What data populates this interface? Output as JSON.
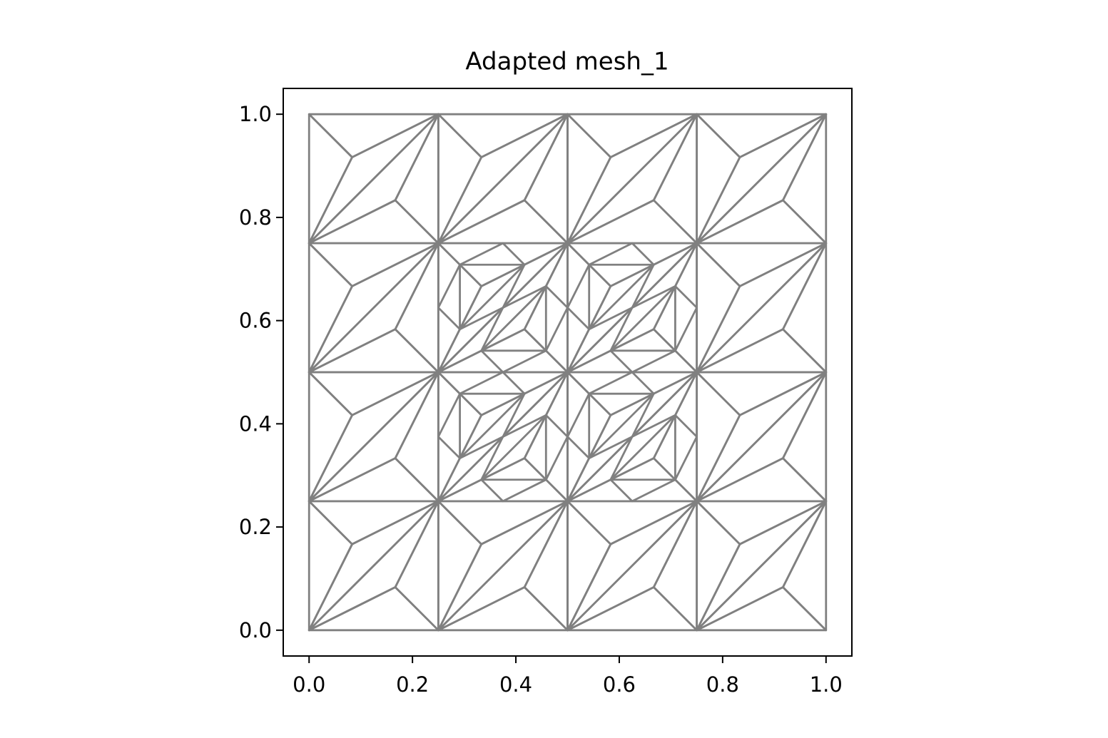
{
  "chart_data": {
    "type": "triplot",
    "title": "Adapted mesh_1",
    "color": "#808080",
    "xlim": [
      -0.05,
      1.05
    ],
    "ylim": [
      -0.05,
      1.05
    ],
    "xticks": [
      {
        "value": 0,
        "label": "0.0"
      },
      0.2,
      0.4,
      0.6,
      0.8,
      {
        "value": 1,
        "label": "1.0"
      }
    ],
    "yticks": [
      {
        "value": 0,
        "label": "0.0"
      },
      0.2,
      0.4,
      0.6,
      0.8,
      {
        "value": 1,
        "label": "1.0"
      }
    ],
    "x": [
      0,
      0.25,
      0.5,
      0.75,
      1,
      0,
      0.25,
      0.5,
      0.75,
      1,
      0,
      0.25,
      0.5,
      0.75,
      1,
      0,
      0.25,
      0.5,
      0.75,
      1,
      0,
      0.25,
      0.5,
      0.75,
      1,
      0.0833,
      0.1667,
      0.3333,
      0.4167,
      0.5833,
      0.6667,
      0.8333,
      0.9167,
      0.0833,
      0.1667,
      0.3333,
      0.4167,
      0.5833,
      0.6667,
      0.8333,
      0.9167,
      0.0833,
      0.1667,
      0.3333,
      0.4167,
      0.5833,
      0.6667,
      0.8333,
      0.9167,
      0.0833,
      0.1667,
      0.3333,
      0.4167,
      0.5833,
      0.6667,
      0.8333,
      0.9167,
      0.25,
      0.375,
      0.375,
      0.375,
      0.5,
      0.2917,
      0.2917,
      0.4167,
      0.3333,
      0.4583,
      0.4583,
      0.5,
      0.625,
      0.625,
      0.625,
      0.75,
      0.5417,
      0.5417,
      0.6667,
      0.5833,
      0.7083,
      0.7083,
      0.25,
      0.375,
      0.375,
      0.375,
      0.5,
      0.2917,
      0.2917,
      0.4167,
      0.3333,
      0.4583,
      0.4583,
      0.5,
      0.625,
      0.625,
      0.625,
      0.75,
      0.5417,
      0.5417,
      0.6667,
      0.5833,
      0.7083,
      0.7083
    ],
    "y": [
      0,
      0,
      0,
      0,
      0,
      0.25,
      0.25,
      0.25,
      0.25,
      0.25,
      0.5,
      0.5,
      0.5,
      0.5,
      0.5,
      0.75,
      0.75,
      0.75,
      0.75,
      0.75,
      1,
      1,
      1,
      1,
      1,
      0.1667,
      0.0833,
      0.1667,
      0.0833,
      0.1667,
      0.0833,
      0.1667,
      0.0833,
      0.4167,
      0.3333,
      0.4167,
      0.3333,
      0.4167,
      0.3333,
      0.4167,
      0.3333,
      0.6667,
      0.5833,
      0.6667,
      0.5833,
      0.6667,
      0.5833,
      0.6667,
      0.5833,
      0.9167,
      0.8333,
      0.9167,
      0.8333,
      0.9167,
      0.8333,
      0.9167,
      0.8333,
      0.375,
      0.375,
      0.5,
      0.25,
      0.375,
      0.4583,
      0.3333,
      0.4583,
      0.2917,
      0.2917,
      0.4167,
      0.375,
      0.375,
      0.5,
      0.25,
      0.375,
      0.4583,
      0.3333,
      0.4583,
      0.2917,
      0.2917,
      0.4167,
      0.625,
      0.625,
      0.75,
      0.5,
      0.625,
      0.7083,
      0.5833,
      0.7083,
      0.5417,
      0.5417,
      0.6667,
      0.625,
      0.625,
      0.75,
      0.5,
      0.625,
      0.7083,
      0.5833,
      0.7083,
      0.5417,
      0.5417,
      0.6667
    ],
    "triangles": [
      [
        5,
        0,
        25
      ],
      [
        0,
        6,
        25
      ],
      [
        6,
        5,
        25
      ],
      [
        0,
        1,
        26
      ],
      [
        1,
        6,
        26
      ],
      [
        6,
        0,
        26
      ],
      [
        6,
        1,
        27
      ],
      [
        1,
        7,
        27
      ],
      [
        7,
        6,
        27
      ],
      [
        1,
        2,
        28
      ],
      [
        2,
        7,
        28
      ],
      [
        7,
        1,
        28
      ],
      [
        7,
        2,
        29
      ],
      [
        2,
        8,
        29
      ],
      [
        8,
        7,
        29
      ],
      [
        2,
        3,
        30
      ],
      [
        3,
        8,
        30
      ],
      [
        8,
        2,
        30
      ],
      [
        8,
        3,
        31
      ],
      [
        3,
        9,
        31
      ],
      [
        9,
        8,
        31
      ],
      [
        3,
        4,
        32
      ],
      [
        4,
        9,
        32
      ],
      [
        9,
        3,
        32
      ],
      [
        10,
        5,
        33
      ],
      [
        5,
        11,
        33
      ],
      [
        11,
        10,
        33
      ],
      [
        5,
        6,
        34
      ],
      [
        6,
        11,
        34
      ],
      [
        11,
        5,
        34
      ],
      [
        11,
        6,
        35
      ],
      [
        6,
        12,
        35
      ],
      [
        12,
        11,
        35
      ],
      [
        6,
        7,
        36
      ],
      [
        7,
        12,
        36
      ],
      [
        12,
        6,
        36
      ],
      [
        12,
        7,
        37
      ],
      [
        7,
        13,
        37
      ],
      [
        13,
        12,
        37
      ],
      [
        7,
        8,
        38
      ],
      [
        8,
        13,
        38
      ],
      [
        13,
        7,
        38
      ],
      [
        13,
        8,
        39
      ],
      [
        8,
        14,
        39
      ],
      [
        14,
        13,
        39
      ],
      [
        8,
        9,
        40
      ],
      [
        9,
        14,
        40
      ],
      [
        14,
        8,
        40
      ],
      [
        15,
        10,
        41
      ],
      [
        10,
        16,
        41
      ],
      [
        16,
        15,
        41
      ],
      [
        10,
        11,
        42
      ],
      [
        11,
        16,
        42
      ],
      [
        16,
        10,
        42
      ],
      [
        16,
        11,
        43
      ],
      [
        11,
        17,
        43
      ],
      [
        17,
        16,
        43
      ],
      [
        11,
        12,
        44
      ],
      [
        12,
        17,
        44
      ],
      [
        17,
        11,
        44
      ],
      [
        17,
        12,
        45
      ],
      [
        12,
        18,
        45
      ],
      [
        18,
        17,
        45
      ],
      [
        12,
        13,
        46
      ],
      [
        13,
        18,
        46
      ],
      [
        18,
        12,
        46
      ],
      [
        18,
        13,
        47
      ],
      [
        13,
        19,
        47
      ],
      [
        19,
        18,
        47
      ],
      [
        13,
        14,
        48
      ],
      [
        14,
        19,
        48
      ],
      [
        19,
        13,
        48
      ],
      [
        20,
        15,
        49
      ],
      [
        15,
        21,
        49
      ],
      [
        21,
        20,
        49
      ],
      [
        15,
        16,
        50
      ],
      [
        16,
        21,
        50
      ],
      [
        21,
        15,
        50
      ],
      [
        21,
        16,
        51
      ],
      [
        16,
        22,
        51
      ],
      [
        22,
        21,
        51
      ],
      [
        16,
        17,
        52
      ],
      [
        17,
        22,
        52
      ],
      [
        22,
        16,
        52
      ],
      [
        22,
        17,
        53
      ],
      [
        17,
        23,
        53
      ],
      [
        23,
        22,
        53
      ],
      [
        17,
        18,
        54
      ],
      [
        18,
        23,
        54
      ],
      [
        23,
        17,
        54
      ],
      [
        23,
        18,
        55
      ],
      [
        18,
        24,
        55
      ],
      [
        24,
        23,
        55
      ],
      [
        18,
        19,
        56
      ],
      [
        19,
        24,
        56
      ],
      [
        24,
        18,
        56
      ],
      [
        57,
        63,
        62
      ],
      [
        58,
        64,
        63
      ],
      [
        59,
        62,
        64
      ],
      [
        60,
        66,
        65
      ],
      [
        61,
        67,
        66
      ],
      [
        58,
        65,
        67
      ],
      [
        68,
        74,
        73
      ],
      [
        69,
        75,
        74
      ],
      [
        70,
        73,
        75
      ],
      [
        71,
        77,
        76
      ],
      [
        72,
        78,
        77
      ],
      [
        69,
        76,
        78
      ],
      [
        79,
        85,
        84
      ],
      [
        80,
        86,
        85
      ],
      [
        81,
        84,
        86
      ],
      [
        82,
        88,
        87
      ],
      [
        83,
        89,
        88
      ],
      [
        80,
        87,
        89
      ],
      [
        90,
        96,
        95
      ],
      [
        91,
        97,
        96
      ],
      [
        92,
        95,
        97
      ],
      [
        93,
        99,
        98
      ],
      [
        94,
        100,
        99
      ],
      [
        91,
        98,
        100
      ]
    ]
  }
}
